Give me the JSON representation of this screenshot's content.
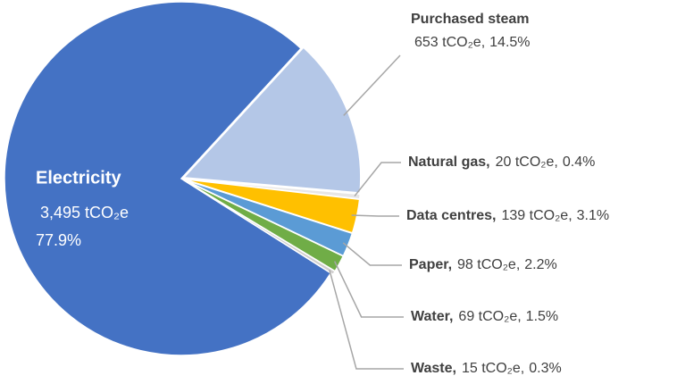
{
  "chart_data": {
    "type": "pie",
    "categories": [
      "Electricity",
      "Purchased steam",
      "Natural gas,",
      "Data centres,",
      "Paper,",
      "Water,",
      "Waste,"
    ],
    "values": [
      3495,
      653,
      20,
      139,
      98,
      69,
      15
    ],
    "value_labels": [
      "3,495 tCO₂e",
      "653 tCO₂e,",
      "20 tCO₂e,",
      "139 tCO₂e,",
      "98 tCO₂e,",
      "69 tCO₂e,",
      "15 tCO₂e,"
    ],
    "percents": [
      77.9,
      14.5,
      0.4,
      3.1,
      2.2,
      1.5,
      0.3
    ],
    "percent_labels": [
      "77.9%",
      "14.5%",
      "0.4%",
      "3.1%",
      "2.2%",
      "1.5%",
      "0.3%"
    ],
    "colors": [
      "#4472c4",
      "#b4c7e7",
      "#e7e6e6",
      "#ffc000",
      "#5b9bd5",
      "#70ad47",
      "#d0cece"
    ]
  }
}
